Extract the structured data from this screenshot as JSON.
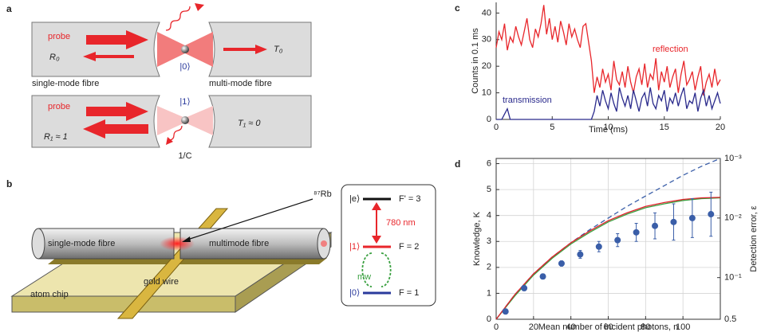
{
  "diagram": {
    "a": {
      "panel_label": "a",
      "top": {
        "probe": "probe",
        "reflection": "R₀",
        "state": "|0⟩",
        "transmission": "T₀"
      },
      "fibre_left": "single-mode fibre",
      "fibre_right": "multi-mode fibre",
      "bottom": {
        "probe": "probe",
        "reflection": "R₁ ≈ 1",
        "state": "|1⟩",
        "transmission": "T₁ ≈ 0",
        "scatter": "1/C"
      }
    },
    "b": {
      "panel_label": "b",
      "atom": "⁸⁷Rb",
      "fibre_left": "single-mode fibre",
      "fibre_right": "multimode fibre",
      "chip": "atom chip",
      "wire": "gold wire",
      "levels": [
        {
          "state": "|e⟩",
          "F": "F' = 3"
        },
        {
          "state": "|1⟩",
          "F": "F = 2"
        },
        {
          "state": "|0⟩",
          "F": "F = 1"
        }
      ],
      "transition": "780 nm",
      "microwave": "mw"
    }
  },
  "chart_data": [
    {
      "type": "line",
      "panel_label": "c",
      "xlabel": "Time (ms)",
      "ylabel": "Counts in 0.1 ms",
      "xlim": [
        0,
        20
      ],
      "xticks": [
        0,
        5,
        10,
        15,
        20
      ],
      "ylim": [
        0,
        44
      ],
      "yticks": [
        0,
        10,
        20,
        30,
        40
      ],
      "grid": false,
      "x": [
        0,
        0.25,
        0.5,
        0.75,
        1,
        1.25,
        1.5,
        1.75,
        2,
        2.25,
        2.5,
        2.75,
        3,
        3.25,
        3.5,
        3.75,
        4,
        4.25,
        4.5,
        4.75,
        5,
        5.25,
        5.5,
        5.75,
        6,
        6.25,
        6.5,
        6.75,
        7,
        7.25,
        7.5,
        7.75,
        8,
        8.25,
        8.5,
        8.75,
        9,
        9.25,
        9.5,
        9.75,
        10,
        10.25,
        10.5,
        10.75,
        11,
        11.25,
        11.5,
        11.75,
        12,
        12.25,
        12.5,
        12.75,
        13,
        13.25,
        13.5,
        13.75,
        14,
        14.25,
        14.5,
        14.75,
        15,
        15.25,
        15.5,
        15.75,
        16,
        16.25,
        16.5,
        16.75,
        17,
        17.25,
        17.5,
        17.75,
        18,
        18.25,
        18.5,
        18.75,
        19,
        19.25,
        19.5,
        19.75,
        20
      ],
      "series": [
        {
          "name": "reflection",
          "color": "#e8262b",
          "values": [
            27,
            33,
            30,
            36,
            26,
            31,
            29,
            35,
            31,
            28,
            33,
            38,
            30,
            27,
            34,
            31,
            36,
            43,
            32,
            38,
            30,
            35,
            29,
            37,
            33,
            28,
            36,
            31,
            34,
            30,
            27,
            35,
            36,
            29,
            22,
            10,
            16,
            12,
            19,
            14,
            17,
            11,
            22,
            15,
            13,
            18,
            12,
            20,
            14,
            10,
            16,
            19,
            13,
            21,
            12,
            17,
            15,
            23,
            11,
            18,
            14,
            20,
            12,
            16,
            19,
            10,
            17,
            22,
            13,
            15,
            18,
            11,
            16,
            20,
            9,
            14,
            17,
            12,
            19,
            13,
            15
          ]
        },
        {
          "name": "transmission",
          "color": "#2a2a8c",
          "values": [
            0,
            0,
            0,
            2,
            4,
            0,
            0,
            0,
            0,
            0,
            0,
            0,
            0,
            0,
            0,
            0,
            0,
            0,
            0,
            0,
            0,
            0,
            0,
            0,
            0,
            0,
            0,
            0,
            0,
            0,
            0,
            0,
            0,
            0,
            0,
            3,
            9,
            5,
            11,
            7,
            4,
            10,
            6,
            3,
            12,
            8,
            5,
            9,
            4,
            11,
            7,
            3,
            8,
            10,
            5,
            12,
            6,
            4,
            9,
            7,
            11,
            3,
            8,
            6,
            10,
            5,
            9,
            12,
            4,
            7,
            6,
            10,
            3,
            8,
            11,
            5,
            9,
            4,
            7,
            10,
            6
          ]
        }
      ]
    },
    {
      "type": "line",
      "panel_label": "d",
      "xlabel": "Mean number of incident photons, n",
      "ylabel": "Knowledge, K",
      "y2label": "Detection error, ε",
      "xlim": [
        0,
        120
      ],
      "xticks": [
        0,
        20,
        40,
        60,
        80,
        100
      ],
      "ylim": [
        0,
        6.2
      ],
      "yticks": [
        0,
        1,
        2,
        3,
        4,
        5,
        6
      ],
      "y2lim": [
        0.5,
        0.001
      ],
      "y2scale": "log",
      "y2ticks": [
        0.5,
        {
          "value": 0.1,
          "label": "10⁻¹"
        },
        {
          "value": 0.01,
          "label": "10⁻²"
        },
        {
          "value": 0.001,
          "label": "10⁻³"
        }
      ],
      "grid": true,
      "series": [
        {
          "type": "line",
          "color": "#3a5ea8",
          "dashed": true,
          "x": [
            0,
            10,
            20,
            30,
            40,
            50,
            60,
            70,
            80,
            90,
            100,
            110,
            120
          ],
          "values": [
            0,
            0.95,
            1.75,
            2.4,
            2.95,
            3.45,
            3.9,
            4.35,
            4.75,
            5.15,
            5.55,
            5.9,
            6.2
          ]
        },
        {
          "type": "line",
          "color": "#3aa040",
          "x": [
            0,
            10,
            20,
            30,
            40,
            50,
            60,
            70,
            80,
            90,
            100,
            110,
            120
          ],
          "values": [
            0,
            0.9,
            1.7,
            2.35,
            2.9,
            3.35,
            3.75,
            4.05,
            4.3,
            4.45,
            4.58,
            4.65,
            4.68
          ]
        },
        {
          "type": "line",
          "color": "#e0202a",
          "x": [
            0,
            10,
            20,
            30,
            40,
            50,
            60,
            70,
            80,
            90,
            100,
            110,
            120
          ],
          "values": [
            0,
            0.95,
            1.75,
            2.4,
            2.95,
            3.4,
            3.8,
            4.1,
            4.35,
            4.5,
            4.62,
            4.68,
            4.7
          ]
        },
        {
          "type": "scatter",
          "color": "#3a5ea8",
          "x": [
            5,
            15,
            25,
            35,
            45,
            55,
            65,
            75,
            85,
            95,
            105,
            115
          ],
          "values": [
            0.3,
            1.2,
            1.65,
            2.15,
            2.5,
            2.8,
            3.05,
            3.35,
            3.6,
            3.75,
            3.9,
            4.05
          ],
          "errors": [
            0.1,
            0.1,
            0.1,
            0.1,
            0.15,
            0.2,
            0.25,
            0.35,
            0.5,
            0.7,
            0.75,
            0.85
          ]
        }
      ]
    }
  ]
}
